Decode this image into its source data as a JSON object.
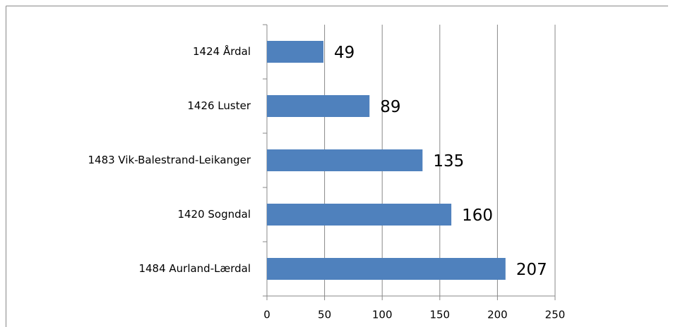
{
  "chart_data": {
    "type": "bar",
    "orientation": "horizontal",
    "categories": [
      "1424 Årdal",
      "1426 Luster",
      "1483 Vik-Balestrand-Leikanger",
      "1420 Sogndal",
      "1484 Aurland-Lærdal"
    ],
    "values": [
      49,
      89,
      135,
      160,
      207
    ],
    "color": "#4f81bd",
    "xlim": [
      0,
      250
    ],
    "xticks": [
      0,
      50,
      100,
      150,
      200,
      250
    ],
    "grid": true
  }
}
